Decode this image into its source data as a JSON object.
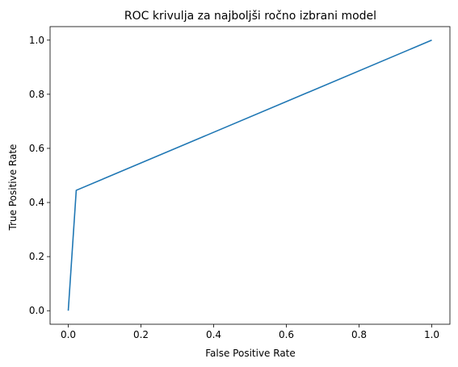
{
  "chart_data": {
    "type": "line",
    "title": "ROC krivulja za najboljši ročno izbrani model",
    "xlabel": "False Positive Rate",
    "ylabel": "True Positive Rate",
    "xlim": [
      -0.05,
      1.05
    ],
    "ylim": [
      -0.05,
      1.05
    ],
    "x_ticks": [
      0.0,
      0.2,
      0.4,
      0.6,
      0.8,
      1.0
    ],
    "y_ticks": [
      0.0,
      0.2,
      0.4,
      0.6,
      0.8,
      1.0
    ],
    "x_tick_labels": [
      "0.0",
      "0.2",
      "0.4",
      "0.6",
      "0.8",
      "1.0"
    ],
    "y_tick_labels": [
      "0.0",
      "0.2",
      "0.4",
      "0.6",
      "0.8",
      "1.0"
    ],
    "grid": false,
    "series": [
      {
        "color": "#1f77b4",
        "x": [
          0.0,
          0.022,
          1.0
        ],
        "y": [
          0.0,
          0.445,
          1.0
        ]
      }
    ]
  }
}
